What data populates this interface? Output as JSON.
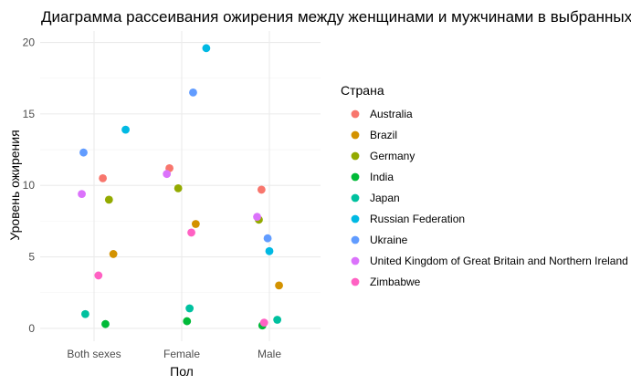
{
  "chart_data": {
    "type": "scatter",
    "title": "Диаграмма рассеивания ожирения между женщинами и мужчинами в выбранных странах",
    "xlabel": "Пол",
    "ylabel": "Уровень ожирения",
    "categories": [
      "Both sexes",
      "Female",
      "Male"
    ],
    "ylim": [
      -0.9,
      20.8
    ],
    "yticks": [
      0,
      5,
      10,
      15,
      20
    ],
    "grid": true,
    "legend": {
      "title": "Страна",
      "placement": "right"
    },
    "series": [
      {
        "name": "Australia",
        "color": "#F8766D",
        "points": [
          {
            "category": "Both sexes",
            "jitter": 0.1,
            "y": 10.5
          },
          {
            "category": "Female",
            "jitter": -0.14,
            "y": 11.2
          },
          {
            "category": "Male",
            "jitter": -0.09,
            "y": 9.7
          }
        ]
      },
      {
        "name": "Brazil",
        "color": "#D39200",
        "points": [
          {
            "category": "Both sexes",
            "jitter": 0.22,
            "y": 5.2
          },
          {
            "category": "Female",
            "jitter": 0.16,
            "y": 7.3
          },
          {
            "category": "Male",
            "jitter": 0.11,
            "y": 3.0
          }
        ]
      },
      {
        "name": "Germany",
        "color": "#93AA00",
        "points": [
          {
            "category": "Both sexes",
            "jitter": 0.17,
            "y": 9.0
          },
          {
            "category": "Female",
            "jitter": -0.04,
            "y": 9.8
          },
          {
            "category": "Male",
            "jitter": -0.12,
            "y": 7.6
          }
        ]
      },
      {
        "name": "India",
        "color": "#00BA38",
        "points": [
          {
            "category": "Both sexes",
            "jitter": 0.13,
            "y": 0.3
          },
          {
            "category": "Female",
            "jitter": 0.06,
            "y": 0.5
          },
          {
            "category": "Male",
            "jitter": -0.08,
            "y": 0.2
          }
        ]
      },
      {
        "name": "Japan",
        "color": "#00C19F",
        "points": [
          {
            "category": "Both sexes",
            "jitter": -0.1,
            "y": 1.0
          },
          {
            "category": "Female",
            "jitter": 0.09,
            "y": 1.4
          },
          {
            "category": "Male",
            "jitter": 0.09,
            "y": 0.6
          }
        ]
      },
      {
        "name": "Russian Federation",
        "color": "#00B9E3",
        "points": [
          {
            "category": "Both sexes",
            "jitter": 0.36,
            "y": 13.9
          },
          {
            "category": "Female",
            "jitter": 0.28,
            "y": 19.6
          },
          {
            "category": "Male",
            "jitter": 0.0,
            "y": 5.4
          }
        ]
      },
      {
        "name": "Ukraine",
        "color": "#619CFF",
        "points": [
          {
            "category": "Both sexes",
            "jitter": -0.12,
            "y": 12.3
          },
          {
            "category": "Female",
            "jitter": 0.13,
            "y": 16.5
          },
          {
            "category": "Male",
            "jitter": -0.02,
            "y": 6.3
          }
        ]
      },
      {
        "name": "United Kingdom of Great Britain and Northern Ireland",
        "color": "#DB72FB",
        "points": [
          {
            "category": "Both sexes",
            "jitter": -0.14,
            "y": 9.4
          },
          {
            "category": "Female",
            "jitter": -0.17,
            "y": 10.8
          },
          {
            "category": "Male",
            "jitter": -0.14,
            "y": 7.8
          }
        ]
      },
      {
        "name": "Zimbabwe",
        "color": "#FF61C3",
        "points": [
          {
            "category": "Both sexes",
            "jitter": 0.05,
            "y": 3.7
          },
          {
            "category": "Female",
            "jitter": 0.11,
            "y": 6.7
          },
          {
            "category": "Male",
            "jitter": -0.06,
            "y": 0.4
          }
        ]
      }
    ]
  }
}
